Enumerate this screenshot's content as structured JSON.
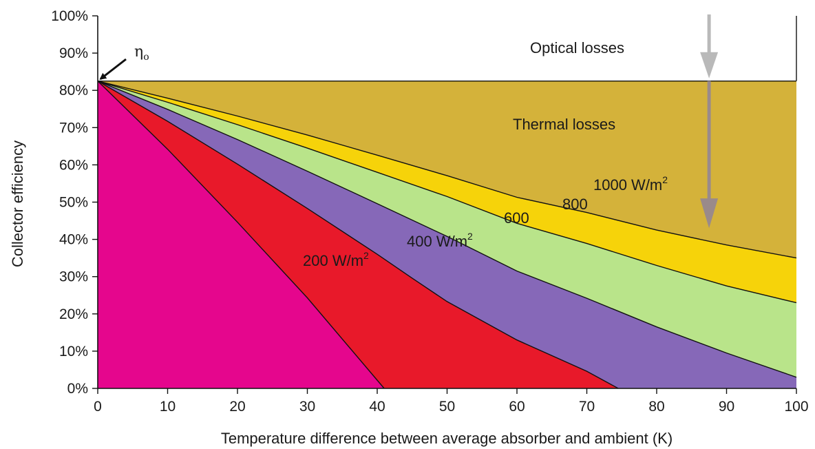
{
  "chart_data": {
    "type": "area",
    "xlabel": "Temperature difference between average absorber and ambient (K)",
    "ylabel": "Collector efficiency",
    "xlim": [
      0,
      100
    ],
    "ylim": [
      0,
      100
    ],
    "x_ticks": [
      "0",
      "10",
      "20",
      "30",
      "40",
      "50",
      "60",
      "70",
      "80",
      "90",
      "100"
    ],
    "y_ticks": [
      "0%",
      "10%",
      "20%",
      "30%",
      "40%",
      "50%",
      "60%",
      "70%",
      "80%",
      "90%",
      "100%"
    ],
    "eta0": 82.5,
    "eta0_label": {
      "main": "η",
      "sub": "o"
    },
    "region_labels": {
      "optical": "Optical losses",
      "thermal": "Thermal losses"
    },
    "series": [
      {
        "name": "1000 W/m2",
        "label": "1000 W/m",
        "sup": "2",
        "color": "#f6d30a",
        "x": [
          0,
          10,
          20,
          30,
          40,
          50,
          60,
          70,
          80,
          90,
          100
        ],
        "y": [
          82.5,
          77.9,
          73.1,
          68.0,
          62.6,
          57.1,
          51.3,
          47.2,
          42.5,
          38.5,
          35.0
        ]
      },
      {
        "name": "800 W/m2",
        "label": "800",
        "color": "#b9e48a",
        "x": [
          0,
          10,
          20,
          30,
          40,
          50,
          60,
          70,
          80,
          90,
          100
        ],
        "y": [
          82.5,
          76.8,
          70.8,
          64.5,
          58.0,
          51.5,
          44.3,
          38.9,
          33.0,
          27.5,
          23.0
        ]
      },
      {
        "name": "600 W/m2",
        "label": "600",
        "color": "#8668b8",
        "x": [
          0,
          10,
          20,
          30,
          40,
          50,
          60,
          70,
          80,
          90,
          100
        ],
        "y": [
          82.5,
          74.9,
          66.8,
          58.3,
          49.6,
          40.8,
          31.5,
          24.2,
          16.5,
          9.5,
          3.0
        ]
      },
      {
        "name": "400 W/m2",
        "label": "400 W/m",
        "sup": "2",
        "color": "#e8192a",
        "x": [
          0,
          10,
          20,
          30,
          40,
          45,
          50,
          60,
          70,
          74.5
        ],
        "y": [
          82.5,
          71.7,
          60.2,
          48.3,
          36.0,
          29.6,
          23.3,
          13.0,
          4.6,
          0
        ]
      },
      {
        "name": "200 W/m2",
        "label": "200 W/m",
        "sup": "2",
        "color": "#e5068d",
        "x": [
          0,
          10,
          20,
          30,
          41
        ],
        "y": [
          82.5,
          64.2,
          44.6,
          24.3,
          0
        ]
      }
    ],
    "thermal_color": "#d4b23a",
    "grid": false,
    "legend": "none"
  }
}
